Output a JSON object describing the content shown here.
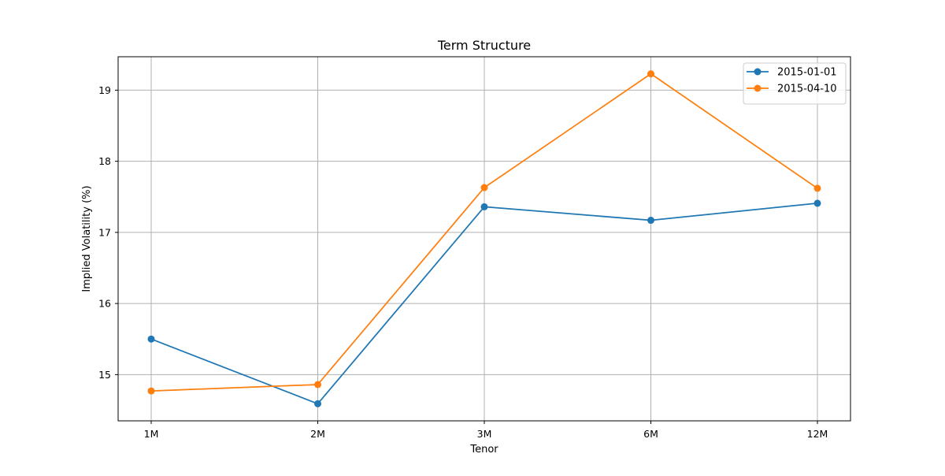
{
  "chart_data": {
    "type": "line",
    "title": "Term Structure",
    "xlabel": "Tenor",
    "ylabel": "Implied Volatility (%)",
    "categories": [
      "1M",
      "2M",
      "3M",
      "6M",
      "12M"
    ],
    "yticks": [
      15,
      16,
      17,
      18,
      19
    ],
    "ylim": [
      14.35,
      19.47
    ],
    "grid": true,
    "legend_position": "top-right",
    "series": [
      {
        "name": "2015-01-01",
        "color": "#1f77b4",
        "marker": "circle",
        "values": [
          15.5,
          14.59,
          17.36,
          17.17,
          17.41
        ]
      },
      {
        "name": "2015-04-10",
        "color": "#ff7f0e",
        "marker": "circle",
        "values": [
          14.77,
          14.86,
          17.63,
          19.23,
          17.62
        ]
      }
    ]
  }
}
